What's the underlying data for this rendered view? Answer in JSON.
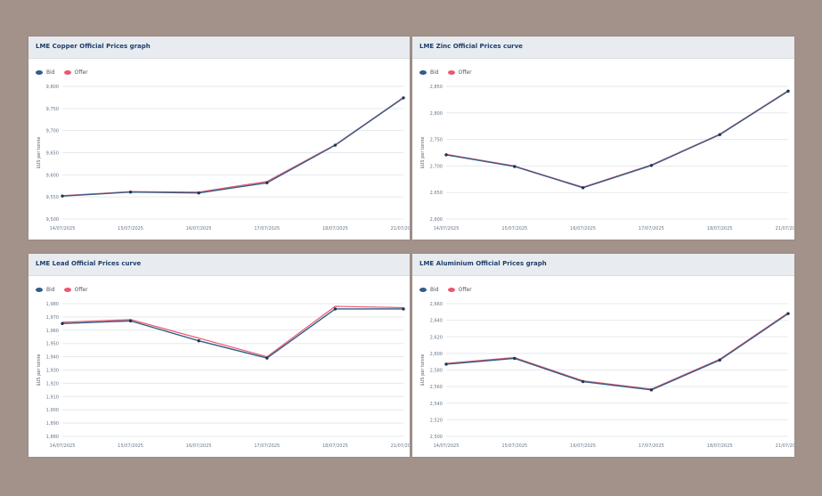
{
  "ui": {
    "legend_colors": {
      "bid": "#345c86",
      "offer": "#e85a6f"
    },
    "grid_color": "#e5e9ee",
    "axis_text_color": "#667788"
  },
  "chart_data": [
    {
      "type": "line",
      "title": "LME Copper Official Prices graph",
      "xlabel": "",
      "ylabel": "$US per tonne",
      "categories": [
        "14/07/2025",
        "15/07/2025",
        "16/07/2025",
        "17/07/2025",
        "18/07/2025",
        "21/07/2025"
      ],
      "ylim": [
        9500,
        9800
      ],
      "yticks": [
        "9,500",
        "9,550",
        "9,600",
        "9,650",
        "9,700",
        "9,750",
        "9,800"
      ],
      "legend": "top-left",
      "series": [
        {
          "name": "Bid",
          "values": [
            9552,
            9561,
            9559,
            9582,
            9667,
            9774
          ]
        },
        {
          "name": "Offer",
          "values": [
            9553,
            9562,
            9561,
            9585,
            9668,
            9775
          ]
        }
      ]
    },
    {
      "type": "line",
      "title": "LME Zinc Official Prices curve",
      "xlabel": "",
      "ylabel": "$US per tonne",
      "categories": [
        "14/07/2025",
        "15/07/2025",
        "16/07/2025",
        "17/07/2025",
        "18/07/2025",
        "21/07/2025"
      ],
      "ylim": [
        2600,
        2850
      ],
      "yticks": [
        "2,600",
        "2,650",
        "2,700",
        "2,750",
        "2,800",
        "2,850"
      ],
      "legend": "top-left",
      "series": [
        {
          "name": "Bid",
          "values": [
            2721,
            2699,
            2659,
            2701,
            2759,
            2841
          ]
        },
        {
          "name": "Offer",
          "values": [
            2722,
            2700,
            2660,
            2702,
            2760,
            2842
          ]
        }
      ]
    },
    {
      "type": "line",
      "title": "LME Lead Official Prices curve",
      "xlabel": "",
      "ylabel": "$US per tonne",
      "categories": [
        "14/07/2025",
        "15/07/2025",
        "16/07/2025",
        "17/07/2025",
        "18/07/2025",
        "21/07/2025"
      ],
      "ylim": [
        1880,
        1980
      ],
      "yticks": [
        "1,880",
        "1,890",
        "1,900",
        "1,910",
        "1,920",
        "1,930",
        "1,940",
        "1,950",
        "1,960",
        "1,970",
        "1,980"
      ],
      "legend": "top-left",
      "series": [
        {
          "name": "Bid",
          "values": [
            1965,
            1967,
            1952,
            1939,
            1976,
            1976
          ]
        },
        {
          "name": "Offer",
          "values": [
            1966,
            1968,
            1954,
            1940,
            1978,
            1977
          ]
        }
      ]
    },
    {
      "type": "line",
      "title": "LME Aluminium Official Prices graph",
      "xlabel": "",
      "ylabel": "$US per tonne",
      "categories": [
        "14/07/2025",
        "15/07/2025",
        "16/07/2025",
        "17/07/2025",
        "18/07/2025",
        "21/07/2025"
      ],
      "ylim": [
        2500,
        2660
      ],
      "yticks": [
        "2,500",
        "2,520",
        "2,540",
        "2,560",
        "2,580",
        "2,600",
        "2,620",
        "2,640",
        "2,660"
      ],
      "legend": "top-left",
      "series": [
        {
          "name": "Bid",
          "values": [
            2587,
            2594,
            2566,
            2556,
            2592,
            2648
          ]
        },
        {
          "name": "Offer",
          "values": [
            2588,
            2595,
            2567,
            2557,
            2593,
            2649
          ]
        }
      ]
    }
  ]
}
